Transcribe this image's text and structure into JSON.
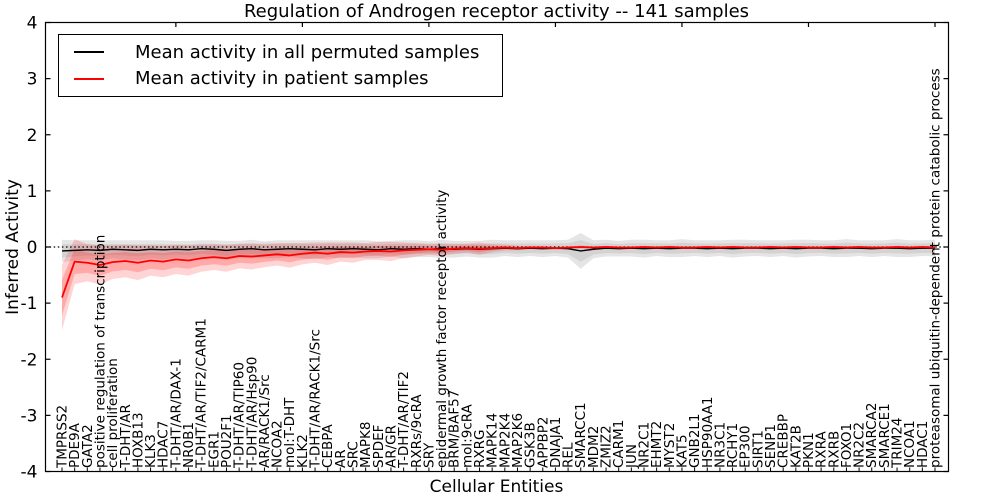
{
  "chart_data": {
    "type": "line",
    "title": "Regulation of Androgen receptor activity -- 141 samples",
    "xlabel": "Cellular Entities",
    "ylabel": "Inferred Activity",
    "ylim": [
      -4,
      4
    ],
    "yticks": [
      -4,
      -3,
      -2,
      -1,
      0,
      1,
      2,
      3,
      4
    ],
    "grid": false,
    "zero_line": {
      "style": "dotted",
      "value": 0,
      "color": "#000000"
    },
    "legend_position": "upper left",
    "top_ticks_every": 10,
    "categories": [
      "TMPRSS2",
      "PDE9A",
      "GATA2",
      "positive regulation of transcription",
      "cell proliferation",
      "T-DHT/AR",
      "HOXB13",
      "KLK3",
      "HDAC7",
      "T-DHT/AR/DAX-1",
      "NR0B1",
      "T-DHT/AR/TIF2/CARM1",
      "EGR1",
      "POU2F1",
      "T-DHT/AR/TIP60",
      "T-DHT/AR/Hsp90",
      "AR/RACK1/Src",
      "NCOA2",
      "mol:T-DHT",
      "KLK2",
      "T-DHT/AR/RACK1/Src",
      "CEBPA",
      "AR",
      "SRC",
      "MAPK8",
      "SPDEF",
      "AR/GR",
      "T-DHT/AR/TIF2",
      "RXRs/9cRA",
      "SRY",
      "epidermal growth factor receptor activity",
      "BRM/BAF57",
      "mol:9cRA",
      "RXRG",
      "MAPK14",
      "MAP2K4",
      "MAP2K6",
      "GSK3B",
      "APPBP2",
      "DNAJA1",
      "REL",
      "SMARCC1",
      "MDM2",
      "ZMIZ2",
      "CARM1",
      "JUN",
      "NR2C1",
      "EHMT2",
      "MYST2",
      "KAT5",
      "GNB2L1",
      "HSP90AA1",
      "NR3C1",
      "RCHY1",
      "EP300",
      "SIRT1",
      "SENP1",
      "CREBBP",
      "KAT2B",
      "PKN1",
      "RXRA",
      "RXRB",
      "FOXO1",
      "NR2C2",
      "SMARCA2",
      "SMARCE1",
      "TRIM24",
      "NCOA1",
      "HDAC1",
      "proteasomal ubiquitin-dependent protein catabolic process"
    ],
    "legend": [
      {
        "label": "Mean activity in all permuted samples",
        "color": "#000000"
      },
      {
        "label": "Mean activity in patient samples",
        "color": "#ff0000"
      }
    ],
    "series": [
      {
        "name": "Mean activity in all permuted samples",
        "color": "#000000",
        "line_width": 1.4,
        "band_fill_outer": "rgba(0,0,0,0.10)",
        "band_fill_inner": "rgba(0,0,0,0.08)",
        "band_inner_ratio": 0.6,
        "values": [
          -0.07,
          -0.06,
          -0.05,
          -0.06,
          -0.04,
          -0.05,
          -0.06,
          -0.04,
          -0.05,
          -0.04,
          -0.05,
          -0.03,
          -0.04,
          -0.06,
          -0.04,
          -0.03,
          -0.05,
          -0.04,
          -0.03,
          -0.04,
          -0.05,
          -0.03,
          -0.04,
          -0.03,
          -0.04,
          -0.05,
          -0.03,
          -0.04,
          -0.03,
          -0.04,
          -0.03,
          -0.04,
          -0.03,
          -0.04,
          -0.03,
          -0.02,
          -0.03,
          -0.02,
          -0.03,
          -0.02,
          -0.03,
          -0.07,
          -0.04,
          -0.02,
          -0.03,
          -0.02,
          -0.03,
          -0.02,
          -0.03,
          -0.02,
          -0.02,
          -0.03,
          -0.02,
          -0.03,
          -0.02,
          -0.02,
          -0.03,
          -0.02,
          -0.03,
          -0.02,
          -0.02,
          -0.03,
          -0.02,
          -0.02,
          -0.03,
          -0.02,
          -0.02,
          -0.03,
          -0.02,
          -0.02
        ],
        "band_halfwidth": [
          0.2,
          0.18,
          0.17,
          0.18,
          0.16,
          0.17,
          0.18,
          0.16,
          0.17,
          0.15,
          0.16,
          0.15,
          0.16,
          0.17,
          0.15,
          0.16,
          0.15,
          0.16,
          0.15,
          0.16,
          0.17,
          0.15,
          0.16,
          0.15,
          0.16,
          0.15,
          0.14,
          0.16,
          0.15,
          0.14,
          0.16,
          0.15,
          0.14,
          0.15,
          0.16,
          0.14,
          0.15,
          0.14,
          0.15,
          0.14,
          0.16,
          0.32,
          0.16,
          0.15,
          0.14,
          0.15,
          0.16,
          0.14,
          0.15,
          0.16,
          0.14,
          0.15,
          0.14,
          0.16,
          0.15,
          0.14,
          0.15,
          0.14,
          0.16,
          0.15,
          0.14,
          0.15,
          0.16,
          0.14,
          0.15,
          0.14,
          0.16,
          0.15,
          0.14,
          0.15
        ]
      },
      {
        "name": "Mean activity in patient samples",
        "color": "#ff0000",
        "line_width": 1.8,
        "band_fill_outer": "rgba(255,0,0,0.17)",
        "band_fill_inner": "rgba(255,0,0,0.20)",
        "band_inner_ratio": 0.55,
        "values": [
          -0.9,
          -0.26,
          -0.28,
          -0.32,
          -0.27,
          -0.25,
          -0.28,
          -0.24,
          -0.26,
          -0.22,
          -0.24,
          -0.2,
          -0.18,
          -0.2,
          -0.16,
          -0.17,
          -0.15,
          -0.13,
          -0.15,
          -0.12,
          -0.1,
          -0.12,
          -0.09,
          -0.1,
          -0.08,
          -0.07,
          -0.08,
          -0.06,
          -0.05,
          -0.04,
          -0.05,
          -0.03,
          -0.02,
          -0.03,
          -0.02,
          -0.01,
          -0.02,
          -0.01,
          -0.01,
          -0.02,
          -0.01,
          0.0,
          -0.01,
          0.0,
          -0.01,
          -0.01,
          0.0,
          -0.01,
          0.0,
          -0.01,
          -0.01,
          0.0,
          -0.01,
          0.0,
          -0.01,
          -0.01,
          0.0,
          -0.01,
          0.0,
          -0.01,
          -0.01,
          0.0,
          -0.01,
          0.0,
          -0.01,
          -0.01,
          0.0,
          -0.01,
          0.0,
          -0.01
        ],
        "band_halfwidth": [
          0.58,
          0.4,
          0.33,
          0.35,
          0.3,
          0.29,
          0.31,
          0.27,
          0.28,
          0.26,
          0.27,
          0.24,
          0.23,
          0.24,
          0.22,
          0.23,
          0.21,
          0.2,
          0.22,
          0.19,
          0.18,
          0.2,
          0.17,
          0.18,
          0.15,
          0.16,
          0.17,
          0.14,
          0.12,
          0.1,
          0.11,
          0.09,
          0.08,
          0.11,
          0.07,
          0.05,
          0.04,
          0.03,
          0.03,
          0.03,
          0.02,
          0.03,
          0.02,
          0.02,
          0.02,
          0.02,
          0.02,
          0.02,
          0.02,
          0.02,
          0.02,
          0.02,
          0.02,
          0.02,
          0.02,
          0.02,
          0.02,
          0.02,
          0.02,
          0.02,
          0.02,
          0.02,
          0.02,
          0.02,
          0.02,
          0.02,
          0.02,
          0.02,
          0.02,
          0.02
        ]
      }
    ]
  }
}
